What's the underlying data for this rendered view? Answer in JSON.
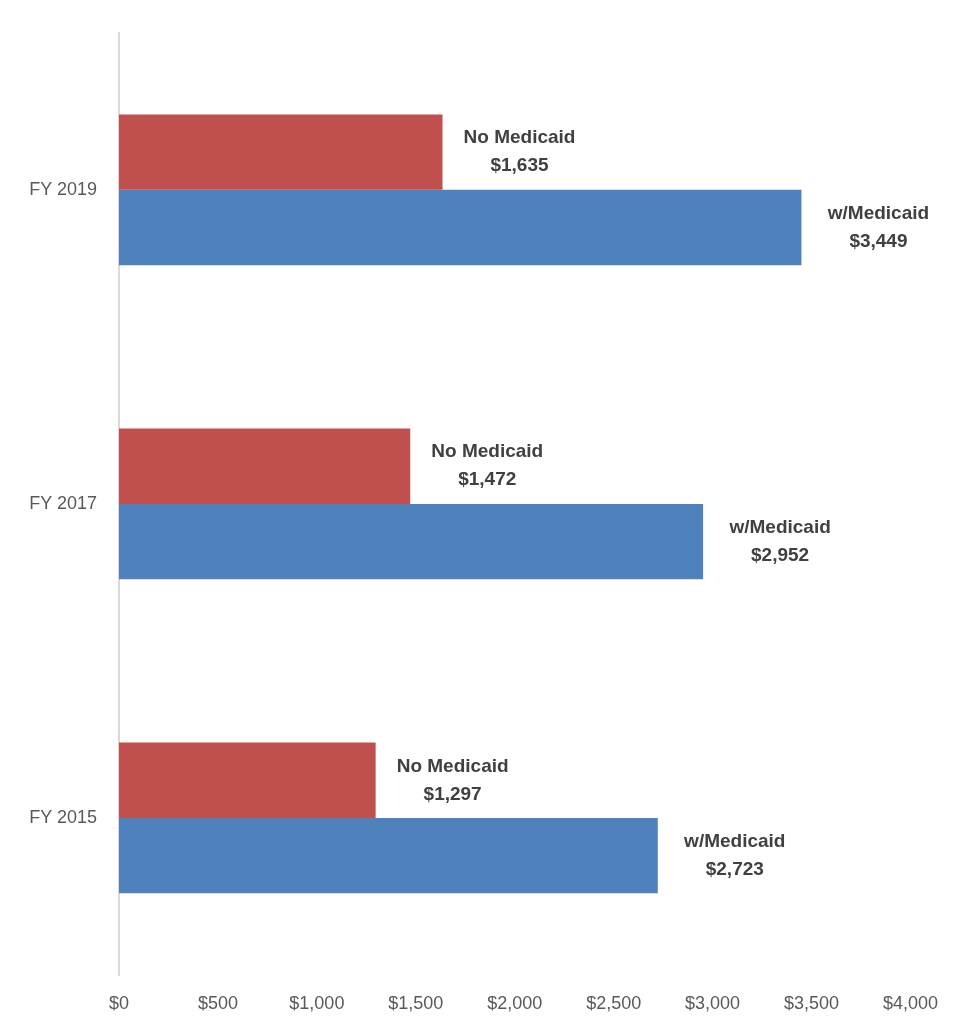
{
  "chart_data": {
    "type": "bar",
    "orientation": "horizontal",
    "categories": [
      "FY 2019",
      "FY 2017",
      "FY 2015"
    ],
    "series": [
      {
        "name": "No Medicaid",
        "color": "#c0504d",
        "values": [
          1635,
          1472,
          1297
        ],
        "value_labels": [
          "$1,635",
          "$1,472",
          "$1,297"
        ]
      },
      {
        "name": "w/Medicaid",
        "color": "#4f81bd",
        "values": [
          3449,
          2952,
          2723
        ],
        "value_labels": [
          "$3,449",
          "$2,952",
          "$2,723"
        ]
      }
    ],
    "xlim": [
      0,
      4000
    ],
    "xticks": [
      {
        "value": 0,
        "label": "$0"
      },
      {
        "value": 500,
        "label": "$500"
      },
      {
        "value": 1000,
        "label": "$1,000"
      },
      {
        "value": 1500,
        "label": "$1,500"
      },
      {
        "value": 2000,
        "label": "$2,000"
      },
      {
        "value": 2500,
        "label": "$2,500"
      },
      {
        "value": 3000,
        "label": "$3,000"
      },
      {
        "value": 3500,
        "label": "$3,500"
      },
      {
        "value": 4000,
        "label": "$4,000"
      }
    ],
    "grid": false,
    "legend": false
  }
}
